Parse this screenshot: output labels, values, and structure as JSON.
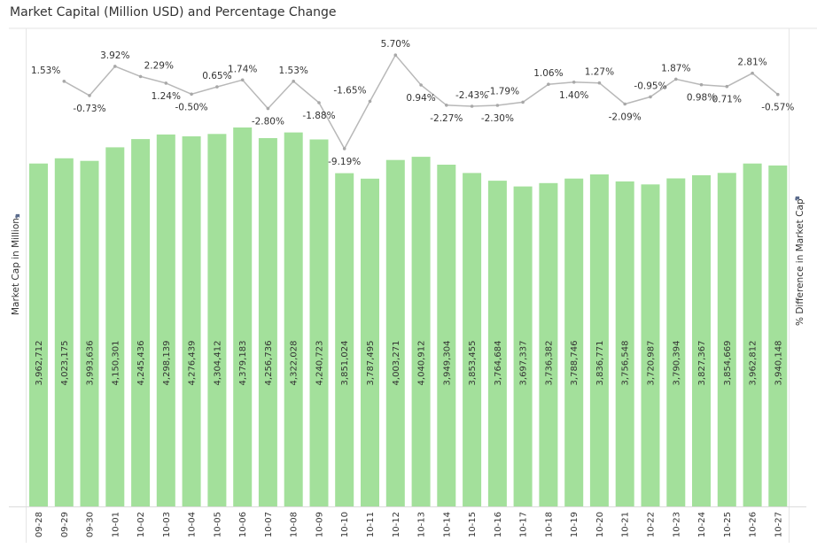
{
  "title": "Market Capital (Million USD) and Percentage Change",
  "chart_data": {
    "type": "bar",
    "title": "Market Capital (Million USD) and Percentage Change",
    "xlabel": "",
    "ylabel": "Market Cap in Million",
    "y2label": "% Difference in Market Cap",
    "categories": [
      "09-28",
      "09-29",
      "09-30",
      "10-01",
      "10-02",
      "10-03",
      "10-04",
      "10-05",
      "10-06",
      "10-07",
      "10-08",
      "10-09",
      "10-10",
      "10-11",
      "10-12",
      "10-13",
      "10-14",
      "10-15",
      "10-16",
      "10-17",
      "10-18",
      "10-19",
      "10-20",
      "10-21",
      "10-22",
      "10-23",
      "10-24",
      "10-25",
      "10-26",
      "10-27"
    ],
    "series": [
      {
        "name": "Market Cap in Million",
        "type": "bar",
        "color": "#a3e09b",
        "values": [
          3962712,
          4023175,
          3993636,
          4150301,
          4245436,
          4298139,
          4276439,
          4304412,
          4379183,
          4256736,
          4322028,
          4240723,
          3851024,
          3787495,
          4003271,
          4040912,
          3949304,
          3853455,
          3764684,
          3697337,
          3736382,
          3788746,
          3836771,
          3756548,
          3720987,
          3790394,
          3827367,
          3854669,
          3962812,
          3940148
        ],
        "labels": [
          "3,962,712",
          "4,023,175",
          "3,993,636",
          "4,150,301",
          "4,245,436",
          "4,298,139",
          "4,276,439",
          "4,304,412",
          "4,379,183",
          "4,256,736",
          "4,322,028",
          "4,240,723",
          "3,851,024",
          "3,787,495",
          "4,003,271",
          "4,040,912",
          "3,949,304",
          "3,853,455",
          "3,764,684",
          "3,697,337",
          "3,736,382",
          "3,788,746",
          "3,836,771",
          "3,756,548",
          "3,720,987",
          "3,790,394",
          "3,827,367",
          "3,854,669",
          "3,962,812",
          "3,940,148"
        ]
      },
      {
        "name": "% Difference in Market Cap",
        "type": "line",
        "color": "#b8b8b8",
        "start_category": "09-29",
        "values": [
          1.53,
          -0.73,
          3.92,
          2.29,
          1.24,
          -0.5,
          0.65,
          1.74,
          -2.8,
          1.53,
          -1.88,
          -9.19,
          -1.65,
          5.7,
          0.94,
          -2.27,
          -2.43,
          -2.3,
          -1.79,
          1.06,
          1.4,
          1.27,
          -2.09,
          -0.95,
          1.87,
          0.98,
          0.71,
          2.81,
          -0.57
        ],
        "labels": [
          "1.53%",
          "-0.73%",
          "3.92%",
          "2.29%",
          "1.24%",
          "-0.50%",
          "0.65%",
          "1.74%",
          "-2.80%",
          "1.53%",
          "-1.88%",
          "-9.19%",
          "-1.65%",
          "5.70%",
          "0.94%",
          "-2.27%",
          "-2.43%",
          "-2.30%",
          "-1.79%",
          "1.06%",
          "1.40%",
          "1.27%",
          "-2.09%",
          "-0.95%",
          "1.87%",
          "0.98%",
          "0.71%",
          "2.81%",
          "-0.57%"
        ],
        "label_side": [
          "left",
          "below",
          "above",
          "right",
          "below",
          "below",
          "above",
          "above",
          "below",
          "above",
          "below",
          "below",
          "left",
          "above",
          "below",
          "below",
          "above",
          "below",
          "left",
          "above",
          "below",
          "above",
          "below",
          "above",
          "above",
          "below",
          "below",
          "above",
          "below"
        ]
      }
    ],
    "ylim": [
      0,
      4379183
    ],
    "grid": false,
    "legend": "none"
  }
}
